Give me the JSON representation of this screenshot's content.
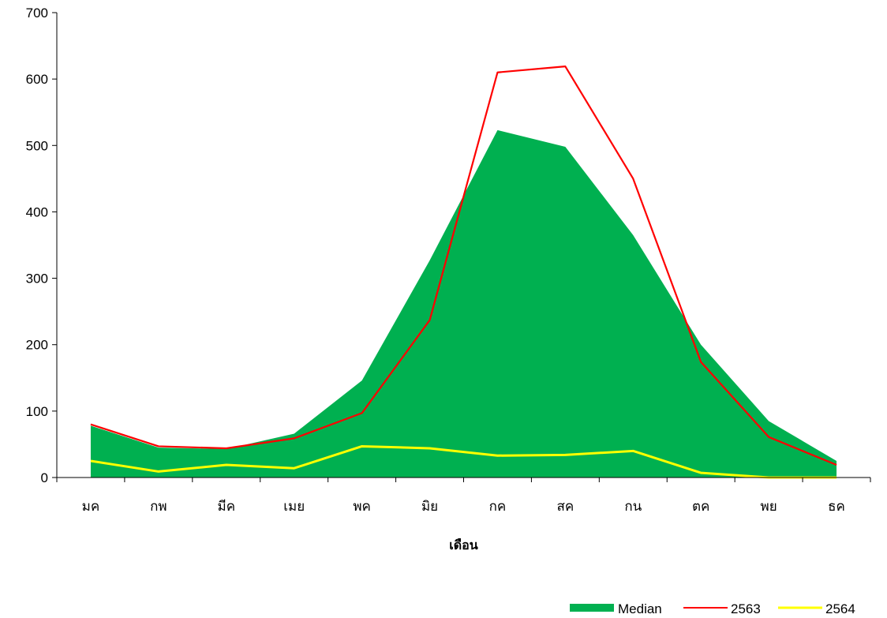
{
  "chart_data": {
    "type": "area",
    "xlabel": "เดือน",
    "ylabel": "",
    "ylim": [
      0,
      700
    ],
    "yticks": [
      0,
      100,
      200,
      300,
      400,
      500,
      600,
      700
    ],
    "grid": false,
    "legend_position": "bottom-right",
    "categories": [
      "มค",
      "กพ",
      "มีค",
      "เมย",
      "พค",
      "มิย",
      "กค",
      "สค",
      "กน",
      "ตค",
      "พย",
      "ธค"
    ],
    "series": [
      {
        "name": "Median",
        "type": "area",
        "color": "#00b050",
        "values": [
          78,
          45,
          43,
          66,
          146,
          327,
          523,
          498,
          365,
          200,
          85,
          25
        ]
      },
      {
        "name": "2563",
        "type": "line",
        "color": "#ff0000",
        "values": [
          80,
          47,
          44,
          59,
          97,
          237,
          610,
          619,
          450,
          174,
          61,
          19
        ]
      },
      {
        "name": "2564",
        "type": "line",
        "color": "#ffff00",
        "values": [
          25,
          9,
          19,
          14,
          47,
          44,
          33,
          34,
          40,
          7,
          0,
          0
        ]
      }
    ]
  }
}
